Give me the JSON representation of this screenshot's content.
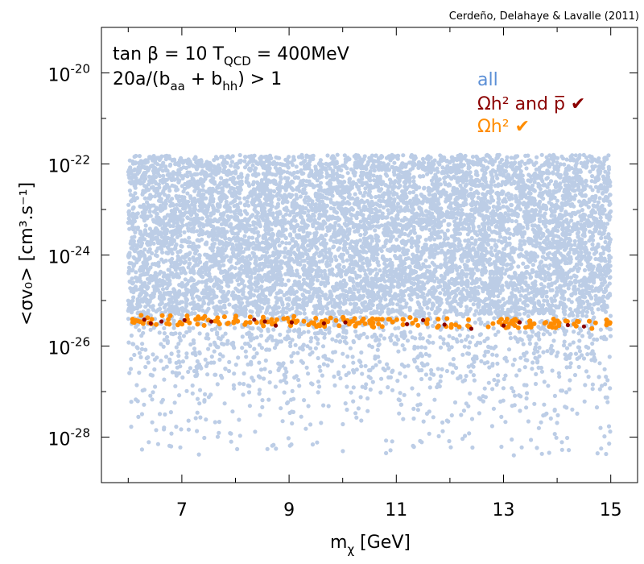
{
  "chart_data": {
    "type": "scatter",
    "credit": "Cerdeño, Delahaye & Lavalle (2011)",
    "annotation_line1": "tan β = 10    T",
    "annotation_line1_sub": "QCD",
    "annotation_line1_end": " = 400MeV",
    "annotation_line2_start": " 20a/(b",
    "annotation_line2_sub1": "aa",
    "annotation_line2_mid": " + b",
    "annotation_line2_sub2": "hh",
    "annotation_line2_end": ") > 1",
    "xlabel_main": "m",
    "xlabel_sub": "χ",
    "xlabel_unit": " [GeV]",
    "ylabel": "<σv₀> [cm³.s⁻¹]",
    "xlim": [
      5.5,
      15.5
    ],
    "ylim_log10": [
      -29.0,
      -19.0
    ],
    "x_ticks": [
      7,
      9,
      11,
      13,
      15
    ],
    "y_ticks_log10": [
      -20,
      -22,
      -24,
      -26,
      -28
    ],
    "y_tick_labels": [
      {
        "base": "10",
        "exp": "-20"
      },
      {
        "base": "10",
        "exp": "-22"
      },
      {
        "base": "10",
        "exp": "-24"
      },
      {
        "base": "10",
        "exp": "-26"
      },
      {
        "base": "10",
        "exp": "-28"
      }
    ],
    "legend": [
      {
        "label": "all",
        "color": "#5b8fd6"
      },
      {
        "label": "Ωh² and p̅ ✔",
        "color": "#8b0000"
      },
      {
        "label": "Ωh² ✔",
        "color": "#ff8c00"
      }
    ],
    "legend_position": "top-right",
    "series": [
      {
        "name": "all",
        "color": "#bccde6",
        "x_range": [
          6.0,
          15.0
        ],
        "y_log10_core_range": [
          -25.3,
          -21.8
        ],
        "y_log10_full_range": [
          -28.4,
          -21.6
        ],
        "approx_point_count": 9000
      },
      {
        "name": "Ωh² ✔",
        "color": "#ff8c00",
        "x_range": [
          6.0,
          15.0
        ],
        "y_log10_range": [
          -25.65,
          -25.35
        ],
        "approx_point_count": 200
      },
      {
        "name": "Ωh² and p̅ ✔",
        "color": "#8b0000",
        "points": [
          [
            6.3,
            -25.42
          ],
          [
            6.42,
            -25.5
          ],
          [
            6.62,
            -25.46
          ],
          [
            7.05,
            -25.43
          ],
          [
            7.55,
            -25.46
          ],
          [
            8.35,
            -25.42
          ],
          [
            8.55,
            -25.46
          ],
          [
            8.75,
            -25.55
          ],
          [
            9.05,
            -25.48
          ],
          [
            9.65,
            -25.5
          ],
          [
            10.05,
            -25.48
          ],
          [
            11.2,
            -25.52
          ],
          [
            11.5,
            -25.43
          ],
          [
            11.9,
            -25.53
          ],
          [
            12.4,
            -25.62
          ],
          [
            13.0,
            -25.55
          ],
          [
            13.3,
            -25.48
          ],
          [
            14.2,
            -25.54
          ],
          [
            14.5,
            -25.57
          ]
        ]
      }
    ],
    "grid": false
  }
}
